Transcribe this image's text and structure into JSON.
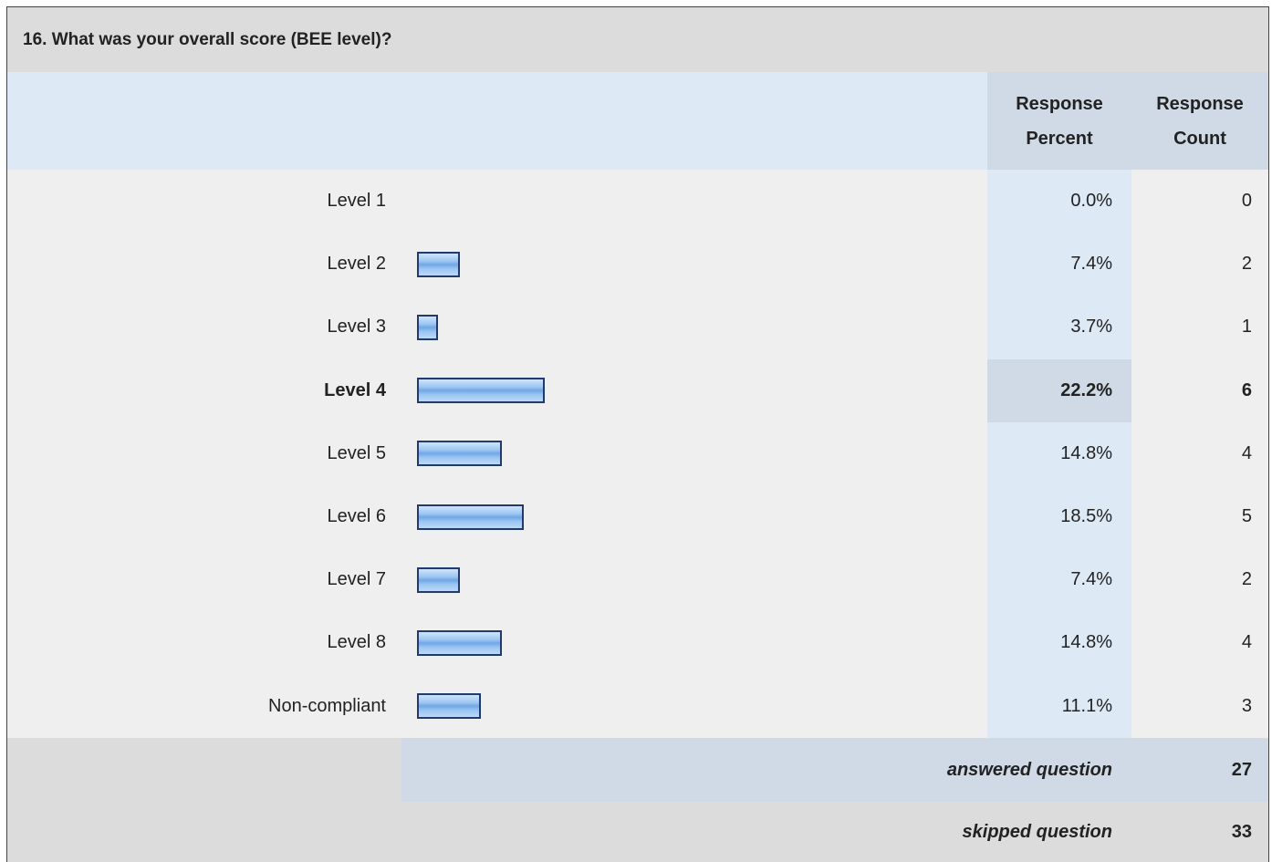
{
  "title": "16. What was your overall score (BEE level)?",
  "headers": [
    "Response Percent",
    "Response Count"
  ],
  "rows": [
    {
      "label": "Level 1",
      "percent": 0.0,
      "percent_label": "0.0%",
      "count": 0
    },
    {
      "label": "Level 2",
      "percent": 7.4,
      "percent_label": "7.4%",
      "count": 2
    },
    {
      "label": "Level 3",
      "percent": 3.7,
      "percent_label": "3.7%",
      "count": 1
    },
    {
      "label": "Level 4",
      "percent": 22.2,
      "percent_label": "22.2%",
      "count": 6
    },
    {
      "label": "Level 5",
      "percent": 14.8,
      "percent_label": "14.8%",
      "count": 4
    },
    {
      "label": "Level 6",
      "percent": 18.5,
      "percent_label": "18.5%",
      "count": 5
    },
    {
      "label": "Level 7",
      "percent": 7.4,
      "percent_label": "7.4%",
      "count": 2
    },
    {
      "label": "Level 8",
      "percent": 14.8,
      "percent_label": "14.8%",
      "count": 4
    },
    {
      "label": "Non-compliant",
      "percent": 11.1,
      "percent_label": "11.1%",
      "count": 3
    }
  ],
  "answered": {
    "label": "answered question",
    "value": 27
  },
  "skipped": {
    "label": "skipped question",
    "value": 33
  }
}
